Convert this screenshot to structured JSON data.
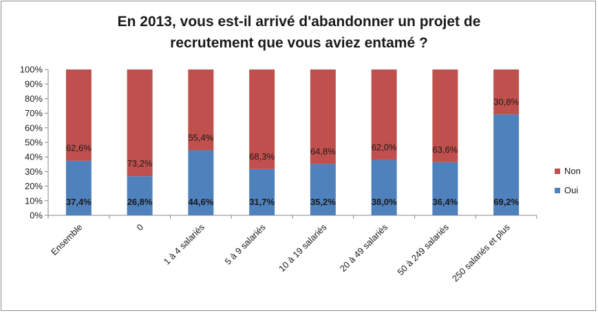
{
  "chart_data": {
    "type": "bar",
    "stacked": true,
    "percent_stacked": true,
    "title": "En 2013, vous est-il arrivé d'abandonner un projet de\nrecrutement que vous aviez entamé ?",
    "categories": [
      "Ensemble",
      "0",
      "1 à 4 salariés",
      "5 à 9 salariés",
      "10 à 19 salariés",
      "20 à 49 salariés",
      "50 à 249 salariés",
      "250 salariés et plus"
    ],
    "series": [
      {
        "name": "Oui",
        "color": "#4F81BD",
        "values": [
          37.4,
          26.8,
          44.6,
          31.7,
          35.2,
          38.0,
          36.4,
          69.2
        ],
        "labels": [
          "37,4%",
          "26,8%",
          "44,6%",
          "31,7%",
          "35,2%",
          "38,0%",
          "36,4%",
          "69,2%"
        ]
      },
      {
        "name": "Non",
        "color": "#C0504D",
        "values": [
          62.6,
          73.2,
          55.4,
          68.3,
          64.8,
          62.0,
          63.6,
          30.8
        ],
        "labels": [
          "62,6%",
          "73,2%",
          "55,4%",
          "68,3%",
          "64,8%",
          "62,0%",
          "63,6%",
          "30,8%"
        ]
      }
    ],
    "yticks": [
      "0%",
      "10%",
      "20%",
      "30%",
      "40%",
      "50%",
      "60%",
      "70%",
      "80%",
      "90%",
      "100%"
    ],
    "ylim": [
      0,
      100
    ],
    "grid": false,
    "legend_position": "right"
  }
}
